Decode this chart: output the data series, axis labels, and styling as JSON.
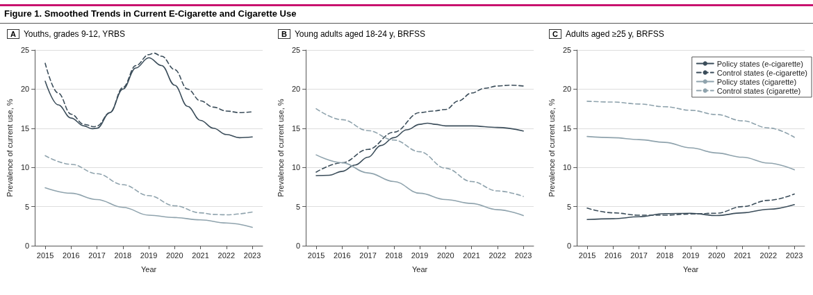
{
  "chart_data": [
    {
      "type": "line",
      "title": "Youths, grades 9-12, YRBS",
      "subtitle": "A",
      "annotations": [
        "Figure 1. Smoothed Trends in Current E-Cigarette and Cigarette Use"
      ],
      "xlabel": "Year",
      "ylabel": "Prevalence of current use, %",
      "xlim": [
        2014.6,
        2023.4
      ],
      "xticks": [
        2015,
        2016,
        2017,
        2018,
        2019,
        2020,
        2021,
        2022,
        2023
      ],
      "ylim": [
        0,
        25
      ],
      "yticks": [
        0,
        5,
        10,
        15,
        20,
        25
      ],
      "grid": "y",
      "marker": "none",
      "legend": false,
      "series": [
        {
          "color": "#3b4d5a",
          "line_style": "solid",
          "x": [
            2015,
            2015.5,
            2016,
            2016.5,
            2016.8,
            2017,
            2017.5,
            2018,
            2018.5,
            2019,
            2019.5,
            2020,
            2020.5,
            2021,
            2021.5,
            2022,
            2022.5,
            2023
          ],
          "values": [
            21,
            18,
            16.3,
            15.3,
            14.95,
            15,
            17,
            20,
            22.7,
            24,
            23,
            20.5,
            17.8,
            16,
            15,
            14.2,
            13.8,
            13.9
          ]
        },
        {
          "color": "#3b4d5a",
          "line_style": "dashed",
          "x": [
            2015,
            2015.5,
            2016,
            2016.5,
            2016.9,
            2017,
            2017.5,
            2018,
            2018.5,
            2019,
            2019.2,
            2019.5,
            2020,
            2020.5,
            2021,
            2021.5,
            2022,
            2022.5,
            2023
          ],
          "values": [
            23.3,
            19.5,
            16.8,
            15.5,
            15.2,
            15.3,
            17,
            20.2,
            23,
            24.4,
            24.6,
            24.2,
            22.5,
            20,
            18.5,
            17.7,
            17.2,
            17,
            17.1
          ]
        },
        {
          "color": "#8fa3ad",
          "line_style": "solid",
          "x": [
            2015,
            2016,
            2017,
            2018,
            2019,
            2020,
            2021,
            2022,
            2023
          ],
          "values": [
            7.4,
            6.7,
            5.9,
            4.9,
            3.9,
            3.6,
            3.3,
            2.9,
            2.35
          ]
        },
        {
          "color": "#8fa3ad",
          "line_style": "dashed",
          "x": [
            2015,
            2016,
            2017,
            2018,
            2019,
            2020,
            2021,
            2021.5,
            2022,
            2023
          ],
          "values": [
            11.5,
            10.4,
            9.2,
            7.8,
            6.4,
            5.1,
            4.2,
            4.0,
            3.95,
            4.3
          ]
        }
      ]
    },
    {
      "type": "line",
      "title": "Young adults aged 18-24 y, BRFSS",
      "subtitle": "B",
      "xlabel": "Year",
      "ylabel": "Prevalence of current use, %",
      "xlim": [
        2014.6,
        2023.4
      ],
      "xticks": [
        2015,
        2016,
        2017,
        2018,
        2019,
        2020,
        2021,
        2022,
        2023
      ],
      "ylim": [
        0,
        25
      ],
      "yticks": [
        0,
        5,
        10,
        15,
        20,
        25
      ],
      "grid": "y",
      "marker": "none",
      "legend": false,
      "series": [
        {
          "color": "#3b4d5a",
          "line_style": "solid",
          "x": [
            2015,
            2015.5,
            2016,
            2016.5,
            2017,
            2017.5,
            2018,
            2018.5,
            2019,
            2019.3,
            2019.6,
            2020,
            2021,
            2022,
            2023
          ],
          "values": [
            8.95,
            9.0,
            9.5,
            10.3,
            11.3,
            12.8,
            13.8,
            14.8,
            15.5,
            15.65,
            15.5,
            15.3,
            15.3,
            15.1,
            14.65
          ]
        },
        {
          "color": "#3b4d5a",
          "line_style": "dashed",
          "x": [
            2015,
            2016,
            2017,
            2018,
            2019,
            2019.5,
            2020,
            2020.5,
            2021,
            2021.5,
            2022,
            2022.5,
            2023
          ],
          "values": [
            9.4,
            10.6,
            12.3,
            14.5,
            17.0,
            17.2,
            17.4,
            18.5,
            19.5,
            20.1,
            20.4,
            20.5,
            20.4
          ]
        },
        {
          "color": "#8fa3ad",
          "line_style": "solid",
          "x": [
            2015,
            2016,
            2017,
            2018,
            2019,
            2020,
            2021,
            2022,
            2023
          ],
          "values": [
            11.6,
            10.6,
            9.3,
            8.2,
            6.7,
            5.9,
            5.4,
            4.6,
            3.85
          ]
        },
        {
          "color": "#8fa3ad",
          "line_style": "dashed",
          "x": [
            2015,
            2016,
            2017,
            2018,
            2019,
            2020,
            2021,
            2022,
            2023
          ],
          "values": [
            17.5,
            16.1,
            14.7,
            13.5,
            12.0,
            9.9,
            8.2,
            7.0,
            6.3
          ]
        }
      ]
    },
    {
      "type": "line",
      "title": "Adults aged ≥25 y, BRFSS",
      "subtitle": "C",
      "xlabel": "Year",
      "ylabel": "Prevalence of current use, %",
      "xlim": [
        2014.6,
        2023.4
      ],
      "xticks": [
        2015,
        2016,
        2017,
        2018,
        2019,
        2020,
        2021,
        2022,
        2023
      ],
      "ylim": [
        0,
        25
      ],
      "yticks": [
        0,
        5,
        10,
        15,
        20,
        25
      ],
      "grid": "y",
      "marker": "none",
      "legend": "top right",
      "series": [
        {
          "name": "Policy states (e-cigarette)",
          "color": "#3b4d5a",
          "line_style": "solid",
          "x": [
            2015,
            2016,
            2017,
            2018,
            2019,
            2020,
            2021,
            2022,
            2023
          ],
          "values": [
            3.35,
            3.45,
            3.7,
            4.1,
            4.15,
            3.85,
            4.2,
            4.65,
            5.25
          ]
        },
        {
          "name": "Control states (e-cigarette)",
          "color": "#3b4d5a",
          "line_style": "dashed",
          "x": [
            2015,
            2016,
            2017,
            2018,
            2019,
            2020,
            2021,
            2022,
            2023
          ],
          "values": [
            4.8,
            4.2,
            3.9,
            3.9,
            4.05,
            4.15,
            5.0,
            5.8,
            6.6
          ]
        },
        {
          "name": "Policy states (cigarette)",
          "color": "#8fa3ad",
          "line_style": "solid",
          "x": [
            2015,
            2016,
            2017,
            2018,
            2019,
            2020,
            2021,
            2022,
            2023
          ],
          "values": [
            13.95,
            13.8,
            13.55,
            13.2,
            12.5,
            11.85,
            11.3,
            10.55,
            9.7
          ]
        },
        {
          "name": "Control states (cigarette)",
          "color": "#8fa3ad",
          "line_style": "dashed",
          "x": [
            2015,
            2016,
            2017,
            2018,
            2019,
            2020,
            2021,
            2022,
            2023
          ],
          "values": [
            18.45,
            18.35,
            18.1,
            17.75,
            17.3,
            16.75,
            15.95,
            15.05,
            13.85
          ]
        }
      ]
    }
  ]
}
